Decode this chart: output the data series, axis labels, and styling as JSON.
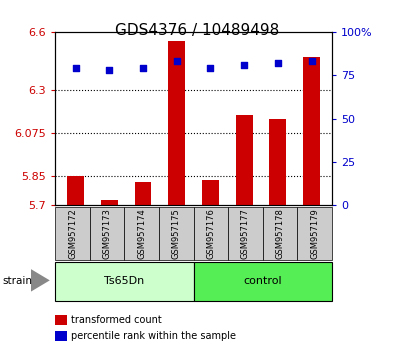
{
  "title": "GDS4376 / 10489498",
  "samples": [
    "GSM957172",
    "GSM957173",
    "GSM957174",
    "GSM957175",
    "GSM957176",
    "GSM957177",
    "GSM957178",
    "GSM957179"
  ],
  "transformed_counts": [
    5.85,
    5.73,
    5.82,
    6.55,
    5.83,
    6.17,
    6.15,
    6.47
  ],
  "percentile_ranks": [
    79,
    78,
    79,
    83,
    79,
    81,
    82,
    83
  ],
  "ylim_left": [
    5.7,
    6.6
  ],
  "ylim_right": [
    0,
    100
  ],
  "yticks_left": [
    5.7,
    5.85,
    6.075,
    6.3,
    6.6
  ],
  "ytick_labels_left": [
    "5.7",
    "5.85",
    "6.075",
    "6.3",
    "6.6"
  ],
  "yticks_right": [
    0,
    25,
    50,
    75,
    100
  ],
  "ytick_labels_right": [
    "0",
    "25",
    "50",
    "75",
    "100%"
  ],
  "grid_lines": [
    5.85,
    6.075,
    6.3
  ],
  "bar_color": "#cc0000",
  "dot_color": "#0000cc",
  "bar_bottom": 5.7,
  "bar_width": 0.5,
  "group_info": [
    {
      "name": "Ts65Dn",
      "start": 0,
      "end": 3,
      "color": "#ccffcc"
    },
    {
      "name": "control",
      "start": 4,
      "end": 7,
      "color": "#55ee55"
    }
  ],
  "legend_items": [
    {
      "label": "transformed count",
      "color": "#cc0000"
    },
    {
      "label": "percentile rank within the sample",
      "color": "#0000cc"
    }
  ],
  "title_fontsize": 11,
  "axis_label_color_left": "#cc0000",
  "axis_label_color_right": "#0000cc",
  "tick_fontsize": 8,
  "sample_box_color": "#cccccc",
  "strain_label": "strain"
}
